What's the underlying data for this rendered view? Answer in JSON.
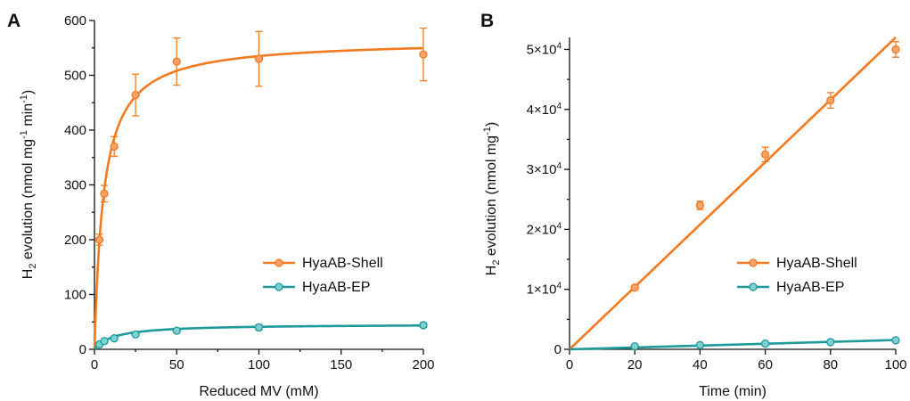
{
  "colors": {
    "shell": "#F47A20",
    "shell_point": "#F7A36A",
    "ep": "#1E9A9A",
    "ep_point": "#7FD0D3",
    "axis": "#111111"
  },
  "chart_data": [
    {
      "type": "scatter",
      "panel": "A",
      "xlabel": "Reduced MV (mM)",
      "ylabel": "H2 evolution (nmol mg-1 min-1)",
      "ylabel_parts": {
        "pre": "H",
        "sub": "2",
        "mid": " evolution (nmol mg",
        "sup1": "-1",
        "mid2": " min",
        "sup2": "-1",
        "post": ")"
      },
      "xlim": [
        0,
        200
      ],
      "ylim": [
        0,
        600
      ],
      "x_ticks": [
        "0",
        "50",
        "100",
        "150",
        "200"
      ],
      "y_ticks": [
        "0",
        "100",
        "200",
        "300",
        "400",
        "500",
        "600"
      ],
      "grid": false,
      "legend_position": "lower-right",
      "series": [
        {
          "name": "HyaAB-Shell",
          "color_key": "shell",
          "fit": "michaelis-menten",
          "fit_params": {
            "vmax": 565,
            "km": 5.6
          },
          "points": [
            {
              "x": 3,
              "y": 200,
              "err": 10
            },
            {
              "x": 6,
              "y": 284,
              "err": 15
            },
            {
              "x": 12,
              "y": 370,
              "err": 18
            },
            {
              "x": 25,
              "y": 464,
              "err": 38
            },
            {
              "x": 50,
              "y": 525,
              "err": 43
            },
            {
              "x": 100,
              "y": 530,
              "err": 50
            },
            {
              "x": 200,
              "y": 538,
              "err": 48
            }
          ]
        },
        {
          "name": "HyaAB-EP",
          "color_key": "ep",
          "fit": "michaelis-menten",
          "fit_params": {
            "vmax": 46,
            "km": 12
          },
          "points": [
            {
              "x": 3,
              "y": 9,
              "err": 2
            },
            {
              "x": 6,
              "y": 15,
              "err": 2
            },
            {
              "x": 12,
              "y": 20,
              "err": 2
            },
            {
              "x": 25,
              "y": 27,
              "err": 2
            },
            {
              "x": 50,
              "y": 34,
              "err": 3
            },
            {
              "x": 100,
              "y": 40,
              "err": 5
            },
            {
              "x": 200,
              "y": 44,
              "err": 4
            }
          ]
        }
      ]
    },
    {
      "type": "scatter",
      "panel": "B",
      "xlabel": "Time (min)",
      "ylabel": "H2 evolution (nmol mg-1)",
      "ylabel_parts": {
        "pre": "H",
        "sub": "2",
        "mid": " evolution (nmol mg",
        "sup1": "-1",
        "mid2": "",
        "sup2": "",
        "post": ")"
      },
      "xlim": [
        0,
        100
      ],
      "ylim": [
        0,
        52000
      ],
      "x_ticks": [
        "0",
        "20",
        "40",
        "60",
        "80",
        "100"
      ],
      "y_ticks": [
        {
          "value": 0,
          "label": "0",
          "exp": ""
        },
        {
          "value": 10000,
          "label": "1×10",
          "exp": "4"
        },
        {
          "value": 20000,
          "label": "2×10",
          "exp": "4"
        },
        {
          "value": 30000,
          "label": "3×10",
          "exp": "4"
        },
        {
          "value": 40000,
          "label": "4×10",
          "exp": "4"
        },
        {
          "value": 50000,
          "label": "5×10",
          "exp": "4"
        }
      ],
      "grid": false,
      "legend_position": "lower-right",
      "series": [
        {
          "name": "HyaAB-Shell",
          "color_key": "shell",
          "fit": "linear",
          "fit_params": {
            "slope": 520,
            "intercept": 0
          },
          "points": [
            {
              "x": 20,
              "y": 10300,
              "err": 300
            },
            {
              "x": 40,
              "y": 24000,
              "err": 700
            },
            {
              "x": 60,
              "y": 32500,
              "err": 1200
            },
            {
              "x": 80,
              "y": 41500,
              "err": 1300
            },
            {
              "x": 100,
              "y": 50000,
              "err": 1300
            }
          ]
        },
        {
          "name": "HyaAB-EP",
          "color_key": "ep",
          "fit": "linear",
          "fit_params": {
            "slope": 15.5,
            "intercept": 0
          },
          "points": [
            {
              "x": 20,
              "y": 500,
              "err": 80
            },
            {
              "x": 40,
              "y": 700,
              "err": 80
            },
            {
              "x": 60,
              "y": 950,
              "err": 80
            },
            {
              "x": 80,
              "y": 1200,
              "err": 80
            },
            {
              "x": 100,
              "y": 1500,
              "err": 80
            }
          ]
        }
      ]
    }
  ]
}
